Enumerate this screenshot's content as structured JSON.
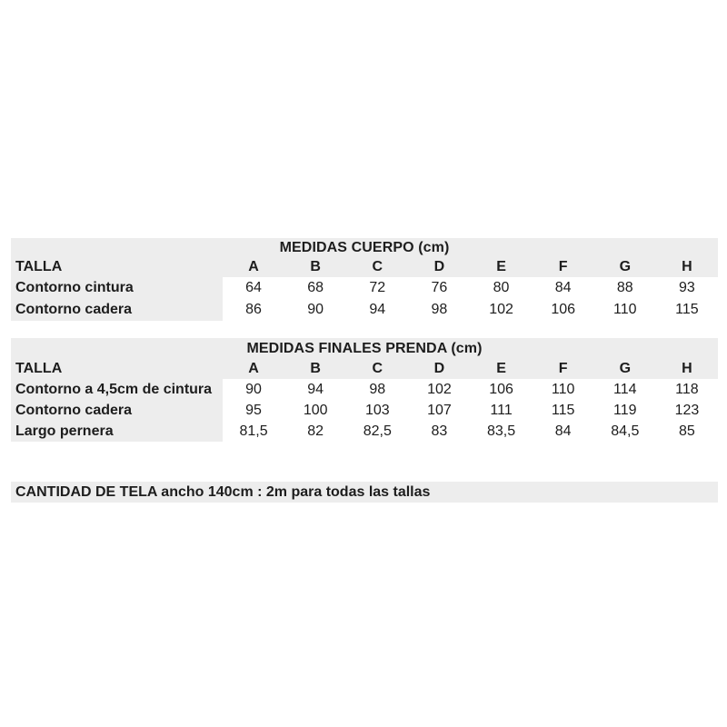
{
  "colors": {
    "page_background": "#ffffff",
    "band_background": "#ededed",
    "data_cell_background": "#ffffff",
    "text": "#1d1d1d"
  },
  "body_table": {
    "title": "MEDIDAS CUERPO (cm)",
    "size_label": "TALLA",
    "sizes": [
      "A",
      "B",
      "C",
      "D",
      "E",
      "F",
      "G",
      "H"
    ],
    "rows": [
      {
        "label": "Contorno cintura",
        "values": [
          "64",
          "68",
          "72",
          "76",
          "80",
          "84",
          "88",
          "93"
        ]
      },
      {
        "label": "Contorno cadera",
        "values": [
          "86",
          "90",
          "94",
          "98",
          "102",
          "106",
          "110",
          "115"
        ]
      }
    ]
  },
  "garment_table": {
    "title": "MEDIDAS FINALES PRENDA (cm)",
    "size_label": "TALLA",
    "sizes": [
      "A",
      "B",
      "C",
      "D",
      "E",
      "F",
      "G",
      "H"
    ],
    "rows": [
      {
        "label": "Contorno a 4,5cm de cintura",
        "values": [
          "90",
          "94",
          "98",
          "102",
          "106",
          "110",
          "114",
          "118"
        ]
      },
      {
        "label": "Contorno cadera",
        "values": [
          "95",
          "100",
          "103",
          "107",
          "111",
          "115",
          "119",
          "123"
        ]
      },
      {
        "label": "Largo pernera",
        "values": [
          "81,5",
          "82",
          "82,5",
          "83",
          "83,5",
          "84",
          "84,5",
          "85"
        ]
      }
    ]
  },
  "fabric_note": "CANTIDAD DE TELA ancho 140cm : 2m para todas las tallas"
}
